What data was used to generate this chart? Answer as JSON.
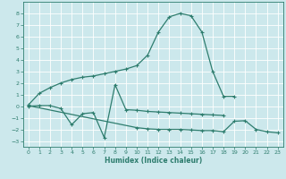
{
  "xlabel": "Humidex (Indice chaleur)",
  "background_color": "#cce8ec",
  "grid_color": "#ffffff",
  "line_color": "#2e7d6e",
  "xlim": [
    -0.5,
    23.5
  ],
  "ylim": [
    -3.5,
    9.0
  ],
  "xticks": [
    0,
    1,
    2,
    3,
    4,
    5,
    6,
    7,
    8,
    9,
    10,
    11,
    12,
    13,
    14,
    15,
    16,
    17,
    18,
    19,
    20,
    21,
    22,
    23
  ],
  "yticks": [
    -3,
    -2,
    -1,
    0,
    1,
    2,
    3,
    4,
    5,
    6,
    7,
    8
  ],
  "line1_x": [
    0,
    1,
    2,
    3,
    4,
    5,
    6,
    7,
    8,
    9,
    10,
    11,
    12,
    13,
    14,
    15,
    16,
    17,
    18,
    19
  ],
  "line1_y": [
    0.1,
    1.1,
    1.6,
    2.0,
    2.3,
    2.5,
    2.6,
    2.8,
    3.0,
    3.2,
    3.5,
    4.4,
    6.4,
    7.7,
    8.0,
    7.8,
    6.4,
    3.0,
    0.85,
    0.85
  ],
  "line2_x": [
    0,
    1,
    2,
    3,
    4,
    5,
    6,
    7,
    8,
    9,
    10,
    11,
    12,
    13,
    14,
    15,
    16,
    17,
    18
  ],
  "line2_y": [
    0.0,
    0.05,
    0.05,
    -0.2,
    -1.6,
    -0.65,
    -0.55,
    -2.7,
    1.85,
    -0.3,
    -0.35,
    -0.45,
    -0.5,
    -0.55,
    -0.6,
    -0.65,
    -0.7,
    -0.75,
    -0.8
  ],
  "line3_x": [
    0,
    10,
    11,
    12,
    13,
    14,
    15,
    16,
    17,
    18,
    19,
    20,
    21,
    22,
    23
  ],
  "line3_y": [
    0.05,
    -1.85,
    -1.95,
    -2.0,
    -2.0,
    -2.0,
    -2.05,
    -2.1,
    -2.1,
    -2.2,
    -1.3,
    -1.25,
    -2.0,
    -2.2,
    -2.3
  ]
}
